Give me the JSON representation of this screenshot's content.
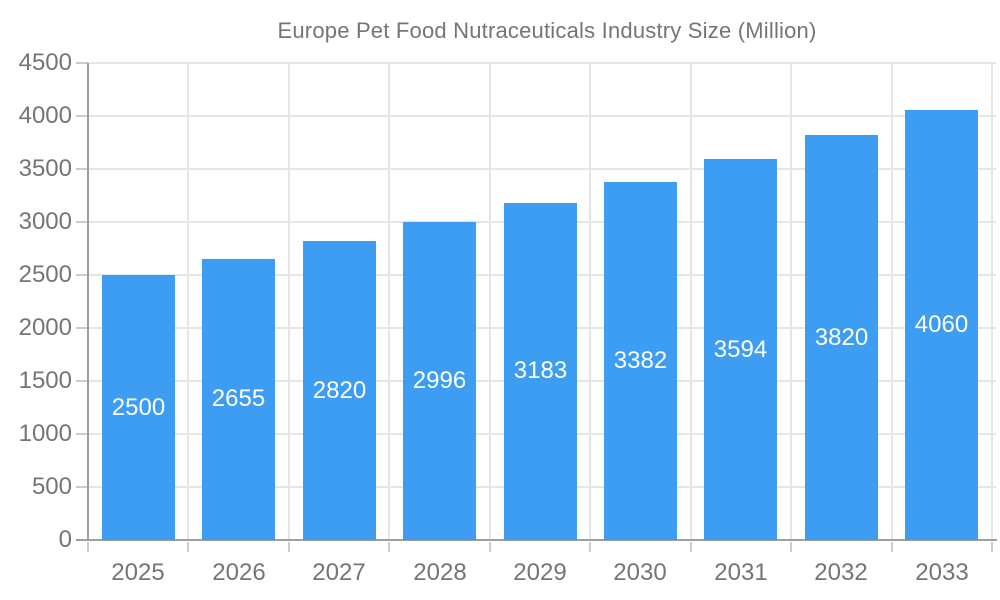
{
  "chart_data": {
    "type": "bar",
    "title": "Europe Pet Food Nutraceuticals Industry Size (Million)",
    "legend_position": "top",
    "grid": true,
    "categories": [
      "2025",
      "2026",
      "2027",
      "2028",
      "2029",
      "2030",
      "2031",
      "2032",
      "2033"
    ],
    "series": [
      {
        "name": "Europe Pet Food Nutraceuticals Industry Size (Million)",
        "values": [
          2500,
          2655,
          2820,
          2996,
          3183,
          3382,
          3594,
          3820,
          4060
        ]
      }
    ],
    "bar_value_labels": [
      "2500",
      "2655",
      "2820",
      "2996",
      "3183",
      "3382",
      "3594",
      "3820",
      "4060"
    ],
    "xlabel": "",
    "ylabel": "",
    "ylim": [
      0,
      4500
    ],
    "ytick_step": 500,
    "yticks": [
      0,
      500,
      1000,
      1500,
      2000,
      2500,
      3000,
      3500,
      4000,
      4500
    ],
    "colors": {
      "bar": "#3d9df3",
      "bar_label_text": "#ffffff",
      "axis_text": "#757575",
      "axis_line": "#9e9e9e",
      "grid_line": "#e6e6e6",
      "tick_mark": "#cccccc",
      "background": "#ffffff"
    }
  }
}
